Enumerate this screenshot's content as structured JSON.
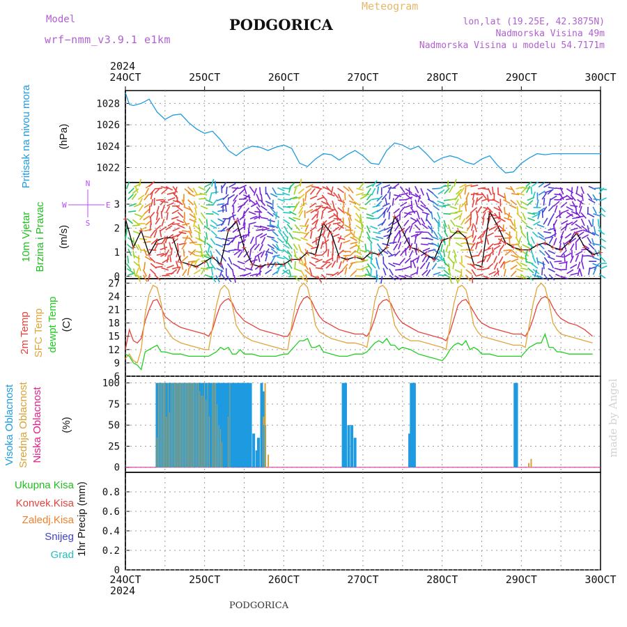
{
  "header": {
    "model_label": "Model",
    "model_value": "wrf−nmm_v3.9.1 e1km",
    "title": "PODGORICA",
    "meteogram": "Meteogram",
    "lonlat": "lon,lat (19.25E, 42.3875N)",
    "elevation": "Nadmorska Visina 49m",
    "model_elevation": "Nadmorska Visina u modelu 54.7171m"
  },
  "footer": {
    "title": "PODGORICA",
    "credit": "made by Angel"
  },
  "colors": {
    "pressure": "#1e9be0",
    "wind_label": "#1fbf1f",
    "wind_dir": "#b44cff",
    "temp_2m": "#e8403a",
    "temp_sfc": "#e2a43a",
    "dewpt": "#1fcf1f",
    "cloud_high": "#1e9be0",
    "cloud_mid": "#d6a23a",
    "cloud_low": "#e0208a",
    "rain_total": "#1fbf1f",
    "rain_conv": "#e8403a",
    "rain_frozen": "#f07f2a",
    "snow": "#4040d0",
    "hail": "#20c0c0",
    "header_purple": "#b060d0",
    "header_orange": "#e6b86a"
  },
  "axes": {
    "year": "2024",
    "x_ticks": [
      "24OCT",
      "25OCT",
      "26OCT",
      "27OCT",
      "28OCT",
      "29OCT",
      "30OCT"
    ]
  },
  "chart_data": [
    {
      "type": "line",
      "title": "",
      "ylabel_lines": [
        "Pritisak na nivou mora"
      ],
      "unit": "(hPa)",
      "ylim": [
        1020.6,
        1029.2
      ],
      "yticks": [
        1022,
        1024,
        1026,
        1028
      ],
      "x_days": [
        0,
        0.05,
        0.1,
        0.2,
        0.3,
        0.4,
        0.5,
        0.6,
        0.7,
        0.8,
        0.9,
        1.0,
        1.1,
        1.2,
        1.3,
        1.4,
        1.5,
        1.6,
        1.7,
        1.8,
        1.9,
        2.0,
        2.1,
        2.2,
        2.3,
        2.4,
        2.5,
        2.6,
        2.7,
        2.8,
        2.9,
        3.0,
        3.1,
        3.2,
        3.3,
        3.4,
        3.5,
        3.6,
        3.7,
        3.8,
        3.9,
        4.0,
        4.1,
        4.2,
        4.3,
        4.4,
        4.5,
        4.6,
        4.7,
        4.8,
        4.9,
        5.0,
        5.1,
        5.2,
        5.3,
        5.4,
        5.5,
        5.6,
        5.7,
        5.8,
        5.9,
        6.0
      ],
      "series": [
        {
          "values": [
            1029.0,
            1027.9,
            1027.8,
            1028.0,
            1028.4,
            1027.2,
            1026.5,
            1026.9,
            1027.0,
            1026.2,
            1025.6,
            1025.2,
            1025.4,
            1024.6,
            1023.6,
            1023.1,
            1023.7,
            1024.0,
            1023.9,
            1023.6,
            1023.9,
            1024.1,
            1023.8,
            1022.4,
            1022.1,
            1022.8,
            1023.3,
            1023.2,
            1022.7,
            1023.2,
            1023.6,
            1023.1,
            1022.4,
            1022.3,
            1023.6,
            1024.3,
            1024.1,
            1023.7,
            1024.0,
            1023.3,
            1022.5,
            1022.9,
            1023.1,
            1022.9,
            1022.5,
            1022.3,
            1022.8,
            1023.1,
            1022.2,
            1021.5,
            1021.6,
            1022.4,
            1022.9,
            1023.3,
            1023.2,
            1023.3,
            1023.3,
            1023.3,
            1023.3,
            1023.3,
            1023.3,
            1023.3
          ]
        }
      ]
    },
    {
      "type": "line",
      "title": "",
      "ylabel_lines": [
        "10m Vjetar",
        "Brzina i Pravac"
      ],
      "unit": "(m/s)",
      "compass": "N S E W",
      "ylim": [
        -0.1,
        3.9
      ],
      "yticks": [
        0,
        1,
        2,
        3
      ],
      "x_days": [
        0,
        0.1,
        0.2,
        0.3,
        0.4,
        0.5,
        0.6,
        0.7,
        0.8,
        0.9,
        1.0,
        1.1,
        1.2,
        1.3,
        1.4,
        1.5,
        1.6,
        1.7,
        1.8,
        1.9,
        2.0,
        2.1,
        2.2,
        2.3,
        2.4,
        2.5,
        2.6,
        2.7,
        2.8,
        2.9,
        3.0,
        3.1,
        3.2,
        3.3,
        3.4,
        3.5,
        3.6,
        3.7,
        3.8,
        3.9,
        4.0,
        4.1,
        4.2,
        4.3,
        4.4,
        4.5,
        4.6,
        4.7,
        4.8,
        4.9,
        5.0,
        5.1,
        5.2,
        5.3,
        5.4,
        5.5,
        5.6,
        5.7,
        5.8,
        5.9,
        6.0
      ],
      "series": [
        {
          "values": [
            2.4,
            1.2,
            1.9,
            0.9,
            1.5,
            1.6,
            1.6,
            0.6,
            0.5,
            0.4,
            0.6,
            0.8,
            0.5,
            1.9,
            2.3,
            1.2,
            0.5,
            0.4,
            0.5,
            0.5,
            0.5,
            0.7,
            0.7,
            1.0,
            0.9,
            2.2,
            1.8,
            0.8,
            0.7,
            0.8,
            0.7,
            1.0,
            0.9,
            1.2,
            2.5,
            1.9,
            1.2,
            1.1,
            0.9,
            0.7,
            1.5,
            1.6,
            1.9,
            1.6,
            0.5,
            0.4,
            2.7,
            2.1,
            1.4,
            1.2,
            1.1,
            1.1,
            1.3,
            1.4,
            1.2,
            1.1,
            1.4,
            1.8,
            1.2,
            0.9,
            1.0
          ]
        }
      ]
    },
    {
      "type": "line",
      "title": "",
      "ylabel_lines": [
        "2m Temp",
        "SFC Temp",
        "dewpt Temp"
      ],
      "unit": "(C)",
      "ylim": [
        6,
        28
      ],
      "yticks": [
        6,
        9,
        12,
        15,
        18,
        21,
        24,
        27
      ],
      "x_days": [
        0,
        0.05,
        0.1,
        0.15,
        0.2,
        0.25,
        0.3,
        0.35,
        0.4,
        0.45,
        0.5,
        0.6,
        0.7,
        0.8,
        0.9,
        1.0,
        1.05,
        1.1,
        1.15,
        1.2,
        1.25,
        1.3,
        1.35,
        1.4,
        1.45,
        1.5,
        1.6,
        1.7,
        1.8,
        1.9,
        2.0,
        2.05,
        2.1,
        2.15,
        2.2,
        2.25,
        2.3,
        2.35,
        2.4,
        2.45,
        2.5,
        2.6,
        2.7,
        2.8,
        2.9,
        3.0,
        3.05,
        3.1,
        3.15,
        3.2,
        3.25,
        3.3,
        3.35,
        3.4,
        3.45,
        3.5,
        3.6,
        3.7,
        3.8,
        3.9,
        4.0,
        4.05,
        4.1,
        4.15,
        4.2,
        4.25,
        4.3,
        4.35,
        4.4,
        4.45,
        4.5,
        4.6,
        4.7,
        4.8,
        4.9,
        5.0,
        5.05,
        5.1,
        5.15,
        5.2,
        5.25,
        5.3,
        5.35,
        5.4,
        5.45,
        5.5,
        5.6,
        5.7,
        5.8,
        5.9,
        6.0
      ],
      "series": [
        {
          "name": "2m Temp",
          "values": [
            12.0,
            16.5,
            14.0,
            13.5,
            14.5,
            18.5,
            21.0,
            23.0,
            23.3,
            21.5,
            19.5,
            18.0,
            17.0,
            16.5,
            16.0,
            15.5,
            15.0,
            16.5,
            19.5,
            22.0,
            23.0,
            23.5,
            22.5,
            20.5,
            19.5,
            18.5,
            17.5,
            16.5,
            16.0,
            15.5,
            15.0,
            15.0,
            16.5,
            19.5,
            22.0,
            23.5,
            24.0,
            23.0,
            21.0,
            19.5,
            18.5,
            17.5,
            16.5,
            16.0,
            15.5,
            15.5,
            15.0,
            16.5,
            19.0,
            22.0,
            23.0,
            23.3,
            22.5,
            20.5,
            19.0,
            18.0,
            17.0,
            16.0,
            15.5,
            15.0,
            14.5,
            14.0,
            16.0,
            19.0,
            22.0,
            23.0,
            23.3,
            22.0,
            20.5,
            19.0,
            18.0,
            17.0,
            16.5,
            16.0,
            15.5,
            15.5,
            15.0,
            16.5,
            19.0,
            22.0,
            23.5,
            24.0,
            23.3,
            21.5,
            20.0,
            19.0,
            18.0,
            17.5,
            16.5,
            15.0
          ]
        },
        {
          "name": "SFC Temp",
          "values": [
            10.0,
            11.0,
            9.5,
            9.0,
            12.0,
            20.0,
            24.5,
            26.5,
            26.0,
            22.5,
            17.0,
            14.5,
            13.5,
            13.0,
            12.5,
            12.0,
            12.0,
            17.0,
            22.0,
            25.5,
            26.5,
            25.5,
            22.0,
            17.5,
            16.0,
            15.0,
            14.0,
            13.5,
            13.0,
            12.5,
            12.0,
            12.0,
            17.5,
            22.5,
            26.0,
            27.0,
            26.0,
            22.5,
            17.5,
            16.0,
            15.5,
            14.5,
            14.0,
            13.5,
            13.5,
            13.0,
            12.5,
            17.5,
            23.0,
            26.0,
            26.5,
            25.5,
            22.0,
            17.5,
            16.0,
            15.0,
            14.0,
            14.0,
            13.5,
            13.0,
            12.5,
            12.0,
            17.5,
            22.5,
            26.0,
            26.5,
            25.5,
            22.0,
            17.5,
            16.0,
            15.0,
            14.5,
            14.0,
            13.5,
            13.0,
            13.0,
            12.5,
            17.5,
            22.5,
            26.0,
            27.0,
            26.0,
            22.5,
            18.0,
            16.5,
            15.5,
            15.0,
            14.5,
            14.0,
            13.5
          ]
        },
        {
          "name": "dewpt Temp",
          "values": [
            11.0,
            10.5,
            9.0,
            8.5,
            7.5,
            11.5,
            12.0,
            12.5,
            13.0,
            11.5,
            11.5,
            11.0,
            11.0,
            10.5,
            10.5,
            10.5,
            10.5,
            11.0,
            11.5,
            12.5,
            12.0,
            12.5,
            11.0,
            11.0,
            12.0,
            11.0,
            11.0,
            10.5,
            10.5,
            10.5,
            11.0,
            11.0,
            12.0,
            13.0,
            14.0,
            14.0,
            14.5,
            12.5,
            12.5,
            13.0,
            11.5,
            11.0,
            10.5,
            10.5,
            11.0,
            11.0,
            11.5,
            12.5,
            13.5,
            14.0,
            13.5,
            14.5,
            13.0,
            13.0,
            12.0,
            12.5,
            12.0,
            11.0,
            10.5,
            10.0,
            9.5,
            10.5,
            12.0,
            13.0,
            13.5,
            13.0,
            14.0,
            12.0,
            12.5,
            12.0,
            11.0,
            11.0,
            10.5,
            10.5,
            10.5,
            10.5,
            11.5,
            12.5,
            13.0,
            13.5,
            13.5,
            15.5,
            12.5,
            12.5,
            11.5,
            11.5,
            11.0,
            11.0,
            11.0,
            11.0
          ]
        }
      ]
    },
    {
      "type": "bar",
      "title": "",
      "ylabel_lines": [
        "Visoka Oblacnost",
        "Srednja Oblacnost",
        "Niska Oblacnost"
      ],
      "unit": "(%)",
      "ylim": [
        -6,
        108
      ],
      "yticks": [
        0,
        25,
        50,
        75,
        100
      ],
      "x_days": [
        0.4,
        0.42,
        0.44,
        0.46,
        0.48,
        0.5,
        0.52,
        0.54,
        0.56,
        0.58,
        0.6,
        0.62,
        0.64,
        0.66,
        0.68,
        0.7,
        0.72,
        0.74,
        0.76,
        0.78,
        0.8,
        0.82,
        0.84,
        0.86,
        0.88,
        0.9,
        0.92,
        0.94,
        0.96,
        0.98,
        1.0,
        1.02,
        1.04,
        1.06,
        1.08,
        1.1,
        1.12,
        1.14,
        1.16,
        1.18,
        1.2,
        1.22,
        1.24,
        1.26,
        1.28,
        1.3,
        1.32,
        1.34,
        1.36,
        1.38,
        1.4,
        1.42,
        1.44,
        1.46,
        1.48,
        1.5,
        1.52,
        1.54,
        1.56,
        1.58,
        1.62,
        1.66,
        1.68,
        1.72,
        1.74,
        1.76,
        1.78,
        1.8,
        2.25,
        2.75,
        2.78,
        2.82,
        2.86,
        2.9,
        3.55,
        3.57,
        3.59,
        3.61,
        3.63,
        3.65,
        4.92,
        4.94,
        4.96,
        4.98,
        5.01,
        5.04,
        5.09,
        5.12
      ],
      "series": [
        {
          "name": "Visoka Oblacnost",
          "values": [
            100,
            100,
            100,
            100,
            100,
            100,
            100,
            100,
            100,
            100,
            100,
            100,
            100,
            100,
            100,
            100,
            100,
            100,
            100,
            100,
            100,
            100,
            100,
            100,
            100,
            100,
            100,
            100,
            100,
            100,
            100,
            100,
            100,
            100,
            100,
            100,
            100,
            100,
            100,
            100,
            100,
            100,
            100,
            100,
            100,
            100,
            100,
            100,
            100,
            100,
            100,
            100,
            100,
            100,
            100,
            100,
            100,
            100,
            100,
            100,
            40,
            20,
            35,
            100,
            90,
            50,
            0,
            0,
            0,
            100,
            100,
            50,
            50,
            35,
            0,
            0,
            40,
            100,
            100,
            100,
            100,
            100,
            0,
            0,
            0,
            0,
            0,
            0
          ]
        },
        {
          "name": "Srednja Oblacnost",
          "values": [
            35,
            100,
            100,
            100,
            100,
            100,
            60,
            100,
            65,
            100,
            100,
            100,
            100,
            100,
            100,
            100,
            100,
            100,
            100,
            100,
            100,
            100,
            100,
            100,
            100,
            100,
            100,
            90,
            85,
            85,
            100,
            80,
            100,
            60,
            0,
            100,
            100,
            100,
            75,
            50,
            45,
            30,
            0,
            0,
            0,
            60,
            100,
            0,
            0,
            0,
            0,
            0,
            0,
            0,
            0,
            0,
            0,
            0,
            0,
            0,
            0,
            0,
            0,
            0,
            60,
            100,
            0,
            15,
            0,
            0,
            0,
            0,
            0,
            0,
            0,
            0,
            0,
            0,
            0,
            0,
            0,
            0,
            0,
            0,
            0,
            0,
            5,
            10
          ]
        },
        {
          "name": "Niska Oblacnost",
          "values": [
            0,
            0,
            0,
            0,
            0,
            0,
            0,
            0,
            0,
            0,
            0,
            0,
            0,
            0,
            0,
            0,
            0,
            0,
            0,
            0,
            0,
            0,
            0,
            0,
            0,
            0,
            0,
            0,
            0,
            0,
            0,
            0,
            0,
            0,
            0,
            0,
            0,
            0,
            0,
            0,
            0,
            0,
            0,
            0,
            0,
            0,
            0,
            0,
            0,
            0,
            0,
            0,
            0,
            0,
            0,
            0,
            0,
            0,
            0,
            0,
            0,
            0,
            0,
            0,
            0,
            0,
            0,
            0,
            0,
            0,
            0,
            0,
            0,
            0,
            0,
            0,
            0,
            0,
            0,
            0,
            0,
            0,
            0,
            0,
            0,
            0,
            0,
            0
          ]
        }
      ]
    },
    {
      "type": "line",
      "title": "",
      "ylabel_lines": [
        "1hr Precip"
      ],
      "unit": "(mm)",
      "legend": [
        "Ukupna Kisa",
        "Konvek.Kisa",
        "Zaledj.Kisa",
        "Snijeg",
        "Grad"
      ],
      "ylim": [
        0,
        1.0
      ],
      "yticks": [
        "0",
        "0.2",
        "0.4",
        "0.6",
        "0.8"
      ],
      "x_days": [
        0,
        6
      ],
      "series": []
    }
  ]
}
